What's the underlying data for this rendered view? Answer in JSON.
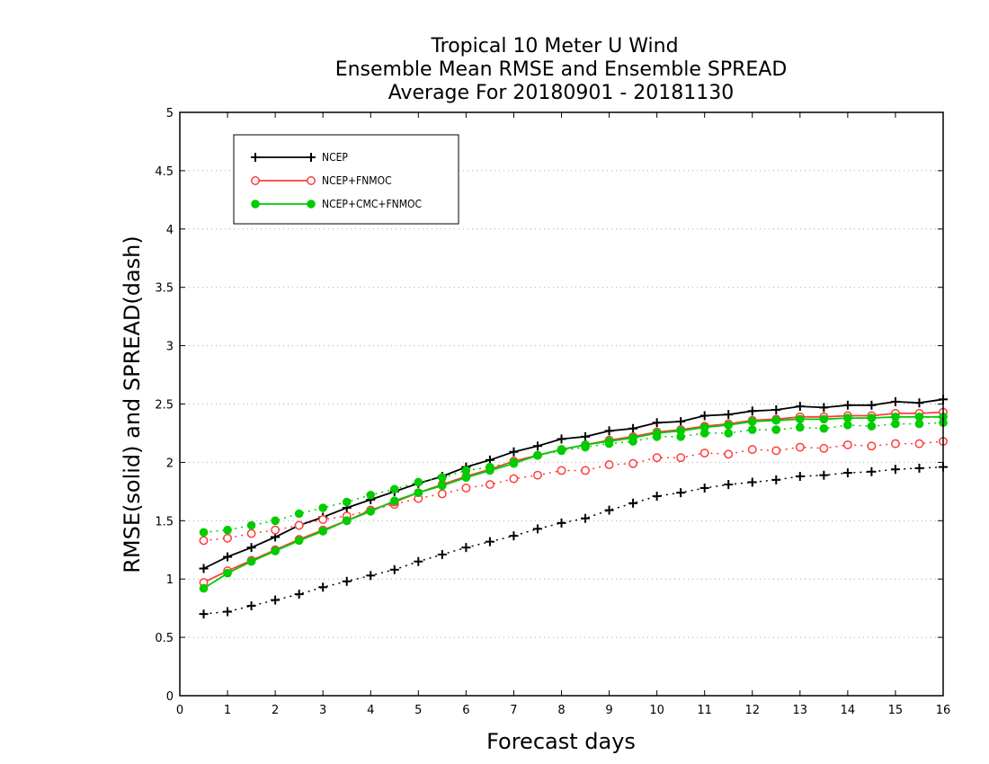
{
  "chart_data": {
    "type": "line",
    "title": [
      "Tropical 10 Meter U Wind",
      "Ensemble Mean RMSE and Ensemble SPREAD",
      "Average For 20180901 - 20181130"
    ],
    "xlabel": "Forecast days",
    "ylabel": "RMSE(solid)  and  SPREAD(dash)",
    "xlim": [
      0,
      16
    ],
    "ylim": [
      0,
      5
    ],
    "xticks": [
      "0",
      "1",
      "2",
      "3",
      "4",
      "5",
      "6",
      "7",
      "8",
      "9",
      "10",
      "11",
      "12",
      "13",
      "14",
      "15",
      "16"
    ],
    "yticks": [
      "0",
      "0.5",
      "1",
      "1.5",
      "2",
      "2.5",
      "3",
      "3.5",
      "4",
      "4.5",
      "5"
    ],
    "grid": "horizontal dotted",
    "legend_position": "top-left",
    "x": [
      0.5,
      1,
      1.5,
      2,
      2.5,
      3,
      3.5,
      4,
      4.5,
      5,
      5.5,
      6,
      6.5,
      7,
      7.5,
      8,
      8.5,
      9,
      9.5,
      10,
      10.5,
      11,
      11.5,
      12,
      12.5,
      13,
      13.5,
      14,
      14.5,
      15,
      15.5,
      16
    ],
    "series": [
      {
        "name": "NCEP",
        "color": "#000000",
        "marker": "plus",
        "rmse": [
          1.09,
          1.19,
          1.27,
          1.36,
          1.46,
          1.53,
          1.61,
          1.68,
          1.75,
          1.82,
          1.88,
          1.96,
          2.02,
          2.09,
          2.14,
          2.2,
          2.22,
          2.27,
          2.29,
          2.34,
          2.35,
          2.4,
          2.41,
          2.44,
          2.45,
          2.48,
          2.47,
          2.49,
          2.49,
          2.52,
          2.51,
          2.54
        ],
        "spread": [
          0.7,
          0.72,
          0.77,
          0.82,
          0.87,
          0.93,
          0.98,
          1.03,
          1.08,
          1.15,
          1.21,
          1.27,
          1.32,
          1.37,
          1.43,
          1.48,
          1.52,
          1.59,
          1.65,
          1.71,
          1.74,
          1.78,
          1.81,
          1.83,
          1.85,
          1.88,
          1.89,
          1.91,
          1.92,
          1.94,
          1.95,
          1.96
        ]
      },
      {
        "name": "NCEP+FNMOC",
        "color": "#ff3b3b",
        "marker": "open-circle",
        "rmse": [
          0.97,
          1.07,
          1.16,
          1.25,
          1.34,
          1.42,
          1.5,
          1.59,
          1.66,
          1.74,
          1.81,
          1.88,
          1.94,
          2.01,
          2.06,
          2.11,
          2.15,
          2.19,
          2.22,
          2.26,
          2.28,
          2.31,
          2.33,
          2.36,
          2.37,
          2.39,
          2.39,
          2.4,
          2.4,
          2.42,
          2.42,
          2.43
        ],
        "spread": [
          1.33,
          1.35,
          1.39,
          1.42,
          1.46,
          1.51,
          1.54,
          1.59,
          1.64,
          1.69,
          1.73,
          1.78,
          1.81,
          1.86,
          1.89,
          1.93,
          1.93,
          1.98,
          1.99,
          2.04,
          2.04,
          2.08,
          2.07,
          2.11,
          2.1,
          2.13,
          2.12,
          2.15,
          2.14,
          2.16,
          2.16,
          2.18
        ]
      },
      {
        "name": "NCEP+CMC+FNMOC",
        "color": "#00cc00",
        "marker": "filled-circle",
        "rmse": [
          0.92,
          1.05,
          1.15,
          1.24,
          1.33,
          1.41,
          1.5,
          1.58,
          1.67,
          1.74,
          1.8,
          1.87,
          1.93,
          1.99,
          2.06,
          2.11,
          2.15,
          2.18,
          2.21,
          2.25,
          2.27,
          2.3,
          2.32,
          2.35,
          2.36,
          2.37,
          2.37,
          2.38,
          2.38,
          2.39,
          2.39,
          2.39
        ],
        "spread": [
          1.4,
          1.42,
          1.46,
          1.5,
          1.56,
          1.61,
          1.66,
          1.72,
          1.77,
          1.83,
          1.87,
          1.93,
          1.96,
          2.0,
          2.06,
          2.1,
          2.13,
          2.16,
          2.18,
          2.22,
          2.22,
          2.25,
          2.25,
          2.28,
          2.28,
          2.3,
          2.29,
          2.32,
          2.31,
          2.33,
          2.33,
          2.34
        ]
      }
    ]
  }
}
